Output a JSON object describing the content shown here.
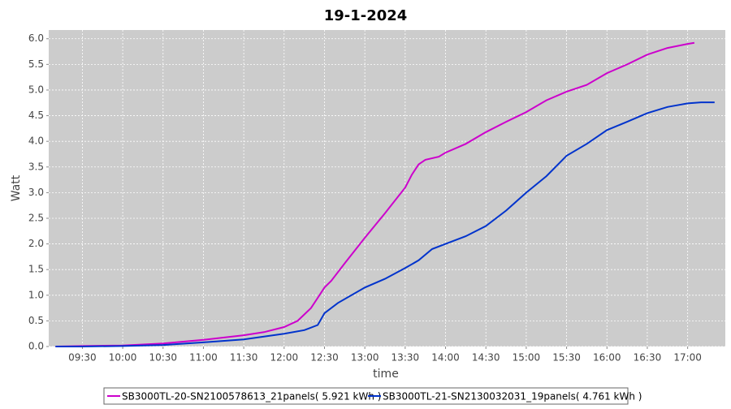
{
  "chart_data": {
    "type": "line",
    "title": "19-1-2024",
    "x_label": "time",
    "y_label": "Watt",
    "xlim": [
      "09:05",
      "17:28"
    ],
    "xticks": [
      "09:30",
      "10:00",
      "10:30",
      "11:00",
      "11:30",
      "12:00",
      "12:30",
      "13:00",
      "13:30",
      "14:00",
      "14:30",
      "15:00",
      "15:30",
      "16:00",
      "16:30",
      "17:00"
    ],
    "ylim": [
      0,
      6.17
    ],
    "yticks": [
      {
        "value": 0,
        "label": "0.0"
      },
      0.5,
      {
        "value": 1,
        "label": "1.0"
      },
      1.5,
      {
        "value": 2,
        "label": "2.0"
      },
      2.5,
      {
        "value": 3,
        "label": "3.0"
      },
      3.5,
      {
        "value": 4,
        "label": "4.0"
      },
      4.5,
      {
        "value": 5,
        "label": "5.0"
      },
      5.5,
      {
        "value": 6,
        "label": "6.0"
      }
    ],
    "grid": true,
    "series": [
      {
        "name": "SB3000TL-20-SN2100578613_21panels( 5.921 kWh )",
        "color": "#cc00cc",
        "x": [
          "09:10",
          "09:30",
          "10:00",
          "10:30",
          "11:00",
          "11:30",
          "11:45",
          "12:00",
          "12:10",
          "12:20",
          "12:25",
          "12:30",
          "12:35",
          "12:45",
          "13:00",
          "13:15",
          "13:30",
          "13:35",
          "13:40",
          "13:45",
          "13:55",
          "14:00",
          "14:15",
          "14:30",
          "14:45",
          "15:00",
          "15:15",
          "15:30",
          "15:45",
          "16:00",
          "16:15",
          "16:30",
          "16:45",
          "17:00",
          "17:05"
        ],
        "values": [
          0,
          0.01,
          0.02,
          0.06,
          0.13,
          0.22,
          0.28,
          0.38,
          0.5,
          0.75,
          0.95,
          1.15,
          1.28,
          1.62,
          2.12,
          2.6,
          3.1,
          3.35,
          3.55,
          3.64,
          3.7,
          3.78,
          3.95,
          4.18,
          4.38,
          4.57,
          4.8,
          4.97,
          5.1,
          5.33,
          5.5,
          5.69,
          5.82,
          5.9,
          5.92
        ]
      },
      {
        "name": "SB3000TL-21-SN2130032031_19panels( 4.761 kWh )",
        "color": "#0033cc",
        "x": [
          "09:10",
          "09:30",
          "10:00",
          "10:30",
          "11:00",
          "11:30",
          "12:00",
          "12:15",
          "12:25",
          "12:30",
          "12:40",
          "13:00",
          "13:15",
          "13:30",
          "13:40",
          "13:50",
          "14:00",
          "14:15",
          "14:30",
          "14:45",
          "15:00",
          "15:15",
          "15:30",
          "15:45",
          "16:00",
          "16:15",
          "16:30",
          "16:45",
          "17:00",
          "17:10",
          "17:20"
        ],
        "values": [
          0,
          0,
          0.01,
          0.03,
          0.08,
          0.14,
          0.25,
          0.32,
          0.42,
          0.65,
          0.85,
          1.15,
          1.32,
          1.53,
          1.68,
          1.9,
          2.0,
          2.15,
          2.35,
          2.65,
          3.0,
          3.32,
          3.72,
          3.95,
          4.22,
          4.38,
          4.55,
          4.67,
          4.74,
          4.76,
          4.76
        ]
      }
    ]
  }
}
